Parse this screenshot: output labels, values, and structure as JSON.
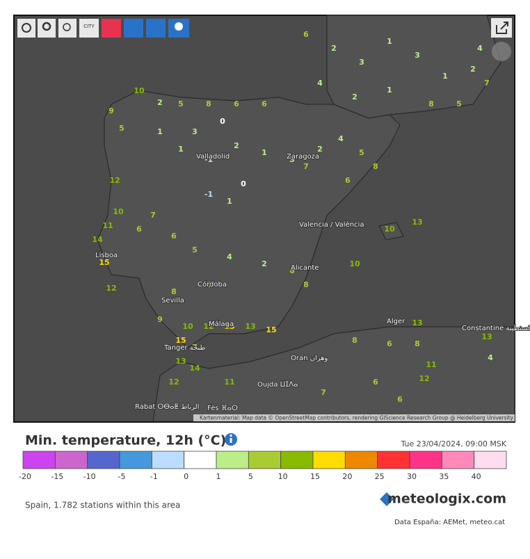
{
  "toolbar": {
    "city_button": "CITY"
  },
  "map": {
    "cities": [
      "Lisboa",
      "Valladolid",
      "Zaragoza",
      "Valencia / València",
      "Alicante",
      "Sevilla",
      "Córdoba",
      "Málaga",
      "Tanger طنجة",
      "Oran وهران",
      "Alger",
      "Constantine قسنطينة",
      "Oujda ⵡⵊⴷⴰ",
      "Rabat ⵔⴱⴰⵟ الرباط",
      "Fès ⴼⴰⵙ"
    ],
    "stations": [
      10,
      2,
      5,
      8,
      6,
      6,
      9,
      5,
      1,
      3,
      0,
      1,
      -1,
      2,
      1,
      0,
      1,
      -1,
      3,
      7,
      2,
      4,
      5,
      8,
      6,
      12,
      10,
      11,
      14,
      15,
      12,
      6,
      7,
      6,
      5,
      4,
      2,
      6,
      8,
      6,
      8,
      9,
      10,
      12,
      15,
      13,
      15,
      15,
      7,
      13,
      14,
      12,
      11,
      10,
      13,
      8,
      6,
      8,
      10,
      13,
      11,
      12,
      6,
      6,
      13,
      4,
      7,
      6,
      2,
      3,
      1,
      3,
      1,
      2,
      7,
      4,
      2,
      1,
      8,
      5,
      4
    ],
    "attribution": "Kartenmaterial: Map data © OpenStreetMap contributors, rendering GIScience Research Group @ Heidelberg University"
  },
  "legend": {
    "title": "Min. temperature, 12h (°C)",
    "date": "Tue 23/04/2024, 09:00 MSK",
    "bins": [
      -20,
      -15,
      -10,
      -5,
      -1,
      0,
      1,
      5,
      10,
      15,
      20,
      25,
      30,
      35,
      40
    ],
    "colors": [
      "#cc44ee",
      "#cc66cc",
      "#5566cc",
      "#4499dd",
      "#bbddff",
      "#ffffff",
      "#bbee88",
      "#aacc33",
      "#88bb00",
      "#ffdd00",
      "#ee8800",
      "#ff3333",
      "#ff3388",
      "#ff88bb",
      "#ffddee"
    ]
  },
  "footer": {
    "stations_note": "Spain, 1.782 stations within this area",
    "logo": "meteologix.com",
    "source": "Data España: AEMet, meteo.cat"
  }
}
